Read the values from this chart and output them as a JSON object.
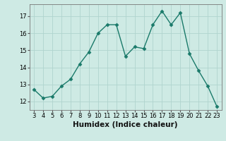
{
  "x": [
    3,
    4,
    5,
    6,
    7,
    8,
    9,
    10,
    11,
    12,
    13,
    14,
    15,
    16,
    17,
    18,
    19,
    20,
    21,
    22,
    23
  ],
  "y": [
    12.7,
    12.2,
    12.3,
    12.9,
    13.3,
    14.2,
    14.9,
    16.0,
    16.5,
    16.5,
    14.65,
    15.2,
    15.1,
    16.5,
    17.3,
    16.5,
    17.2,
    14.8,
    13.8,
    12.9,
    11.7
  ],
  "line_color": "#1a7a6a",
  "marker": "D",
  "marker_size": 2.5,
  "xlabel": "Humidex (Indice chaleur)",
  "xlim": [
    2.5,
    23.5
  ],
  "ylim": [
    11.5,
    17.7
  ],
  "yticks": [
    12,
    13,
    14,
    15,
    16,
    17
  ],
  "xticks": [
    3,
    4,
    5,
    6,
    7,
    8,
    9,
    10,
    11,
    12,
    13,
    14,
    15,
    16,
    17,
    18,
    19,
    20,
    21,
    22,
    23
  ],
  "bg_color": "#ceeae4",
  "grid_color": "#b0d4ce",
  "line_width": 1.0,
  "xlabel_fontsize": 7.5,
  "tick_fontsize": 6.0
}
